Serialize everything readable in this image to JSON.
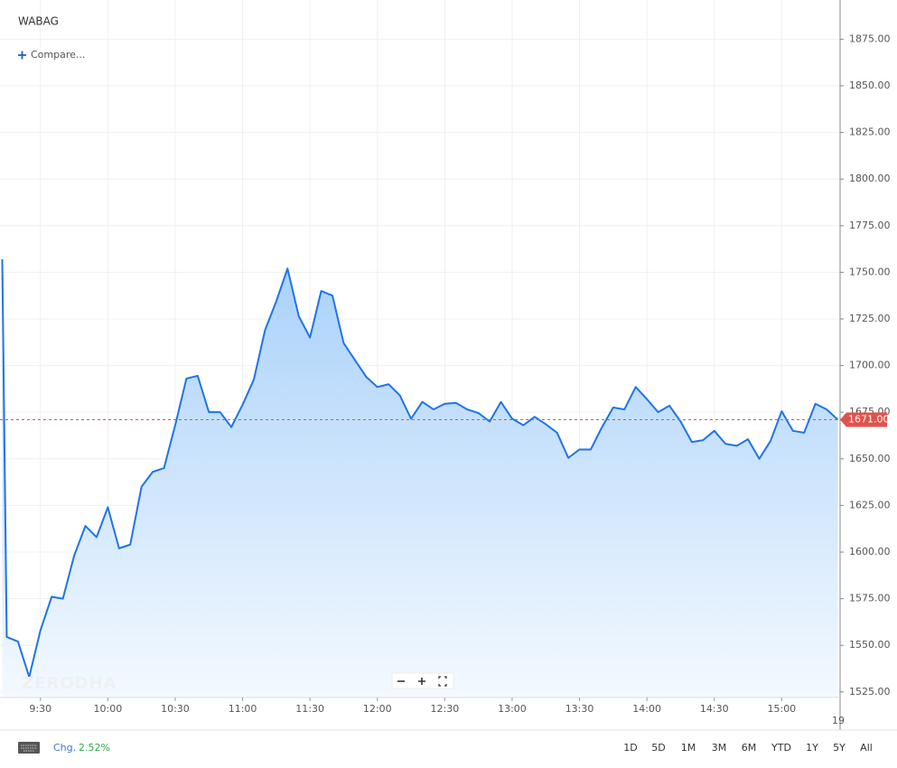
{
  "chart_data": {
    "type": "area",
    "title": "WABAG",
    "color": "#1f74e8",
    "x": [
      553,
      555,
      560,
      565,
      570,
      575,
      580,
      585,
      590,
      595,
      600,
      605,
      610,
      615,
      620,
      625,
      630,
      635,
      640,
      645,
      650,
      655,
      660,
      665,
      670,
      675,
      680,
      685,
      690,
      695,
      700,
      705,
      710,
      715,
      720,
      725,
      730,
      735,
      740,
      745,
      750,
      755,
      760,
      765,
      770,
      775,
      780,
      785,
      790,
      795,
      800,
      805,
      810,
      815,
      820,
      825,
      830,
      835,
      840,
      845,
      850,
      855,
      860,
      865,
      870,
      875,
      880,
      885,
      890,
      895,
      900,
      905,
      910,
      915,
      920,
      925
    ],
    "values": [
      1757,
      1554.5,
      1552,
      1533,
      1558,
      1576,
      1575,
      1598,
      1614,
      1608,
      1624,
      1602,
      1604,
      1635,
      1643,
      1645,
      1668,
      1693,
      1694.5,
      1675,
      1675,
      1667,
      1679,
      1692.5,
      1719,
      1734.5,
      1752,
      1726.5,
      1715,
      1740,
      1737.5,
      1712,
      1703,
      1694,
      1688.5,
      1690,
      1684,
      1671.5,
      1680.5,
      1676.5,
      1679.5,
      1680,
      1676.5,
      1674.5,
      1670,
      1680.5,
      1671.5,
      1668,
      1672.5,
      1668.5,
      1664,
      1650.5,
      1655,
      1655,
      1667,
      1677.5,
      1676.5,
      1688.5,
      1682,
      1675,
      1678.5,
      1670,
      1659,
      1660,
      1665,
      1658,
      1657,
      1660.5,
      1650,
      1659.5,
      1675.5,
      1665,
      1664,
      1679.5,
      1676.5,
      1671
    ],
    "xlim": [
      552,
      926
    ],
    "xticks": [
      {
        "value": 570,
        "label": "9:30"
      },
      {
        "value": 600,
        "label": "10:00"
      },
      {
        "value": 630,
        "label": "10:30"
      },
      {
        "value": 660,
        "label": "11:00"
      },
      {
        "value": 690,
        "label": "11:30"
      },
      {
        "value": 720,
        "label": "12:00"
      },
      {
        "value": 750,
        "label": "12:30"
      },
      {
        "value": 780,
        "label": "13:00"
      },
      {
        "value": 810,
        "label": "13:30"
      },
      {
        "value": 840,
        "label": "14:00"
      },
      {
        "value": 870,
        "label": "14:30"
      },
      {
        "value": 900,
        "label": "15:00"
      }
    ],
    "ylim": [
      1522,
      1896
    ],
    "yticks": [
      {
        "value": 1525,
        "label": "1525.00"
      },
      {
        "value": 1550,
        "label": "1550.00"
      },
      {
        "value": 1575,
        "label": "1575.00"
      },
      {
        "value": 1600,
        "label": "1600.00"
      },
      {
        "value": 1625,
        "label": "1625.00"
      },
      {
        "value": 1650,
        "label": "1650.00"
      },
      {
        "value": 1675,
        "label": "1675.00"
      },
      {
        "value": 1700,
        "label": "1700.00"
      },
      {
        "value": 1725,
        "label": "1725.00"
      },
      {
        "value": 1750,
        "label": "1750.00"
      },
      {
        "value": 1775,
        "label": "1775.00"
      },
      {
        "value": 1800,
        "label": "1800.00"
      },
      {
        "value": 1825,
        "label": "1825.00"
      },
      {
        "value": 1850,
        "label": "1850.00"
      },
      {
        "value": 1875,
        "label": "1875.00"
      }
    ],
    "grid": true,
    "last_price": 1671,
    "last_price_label": "1671.00",
    "last_price_color": "#e0524b",
    "date_label": "19",
    "watermark": "ZERODHA"
  },
  "toolbar": {
    "compare": "Compare...",
    "change_label": "Chg.",
    "change": "2.52%",
    "ranges": [
      "1D",
      "5D",
      "1M",
      "3M",
      "6M",
      "YTD",
      "1Y",
      "5Y",
      "All"
    ]
  }
}
